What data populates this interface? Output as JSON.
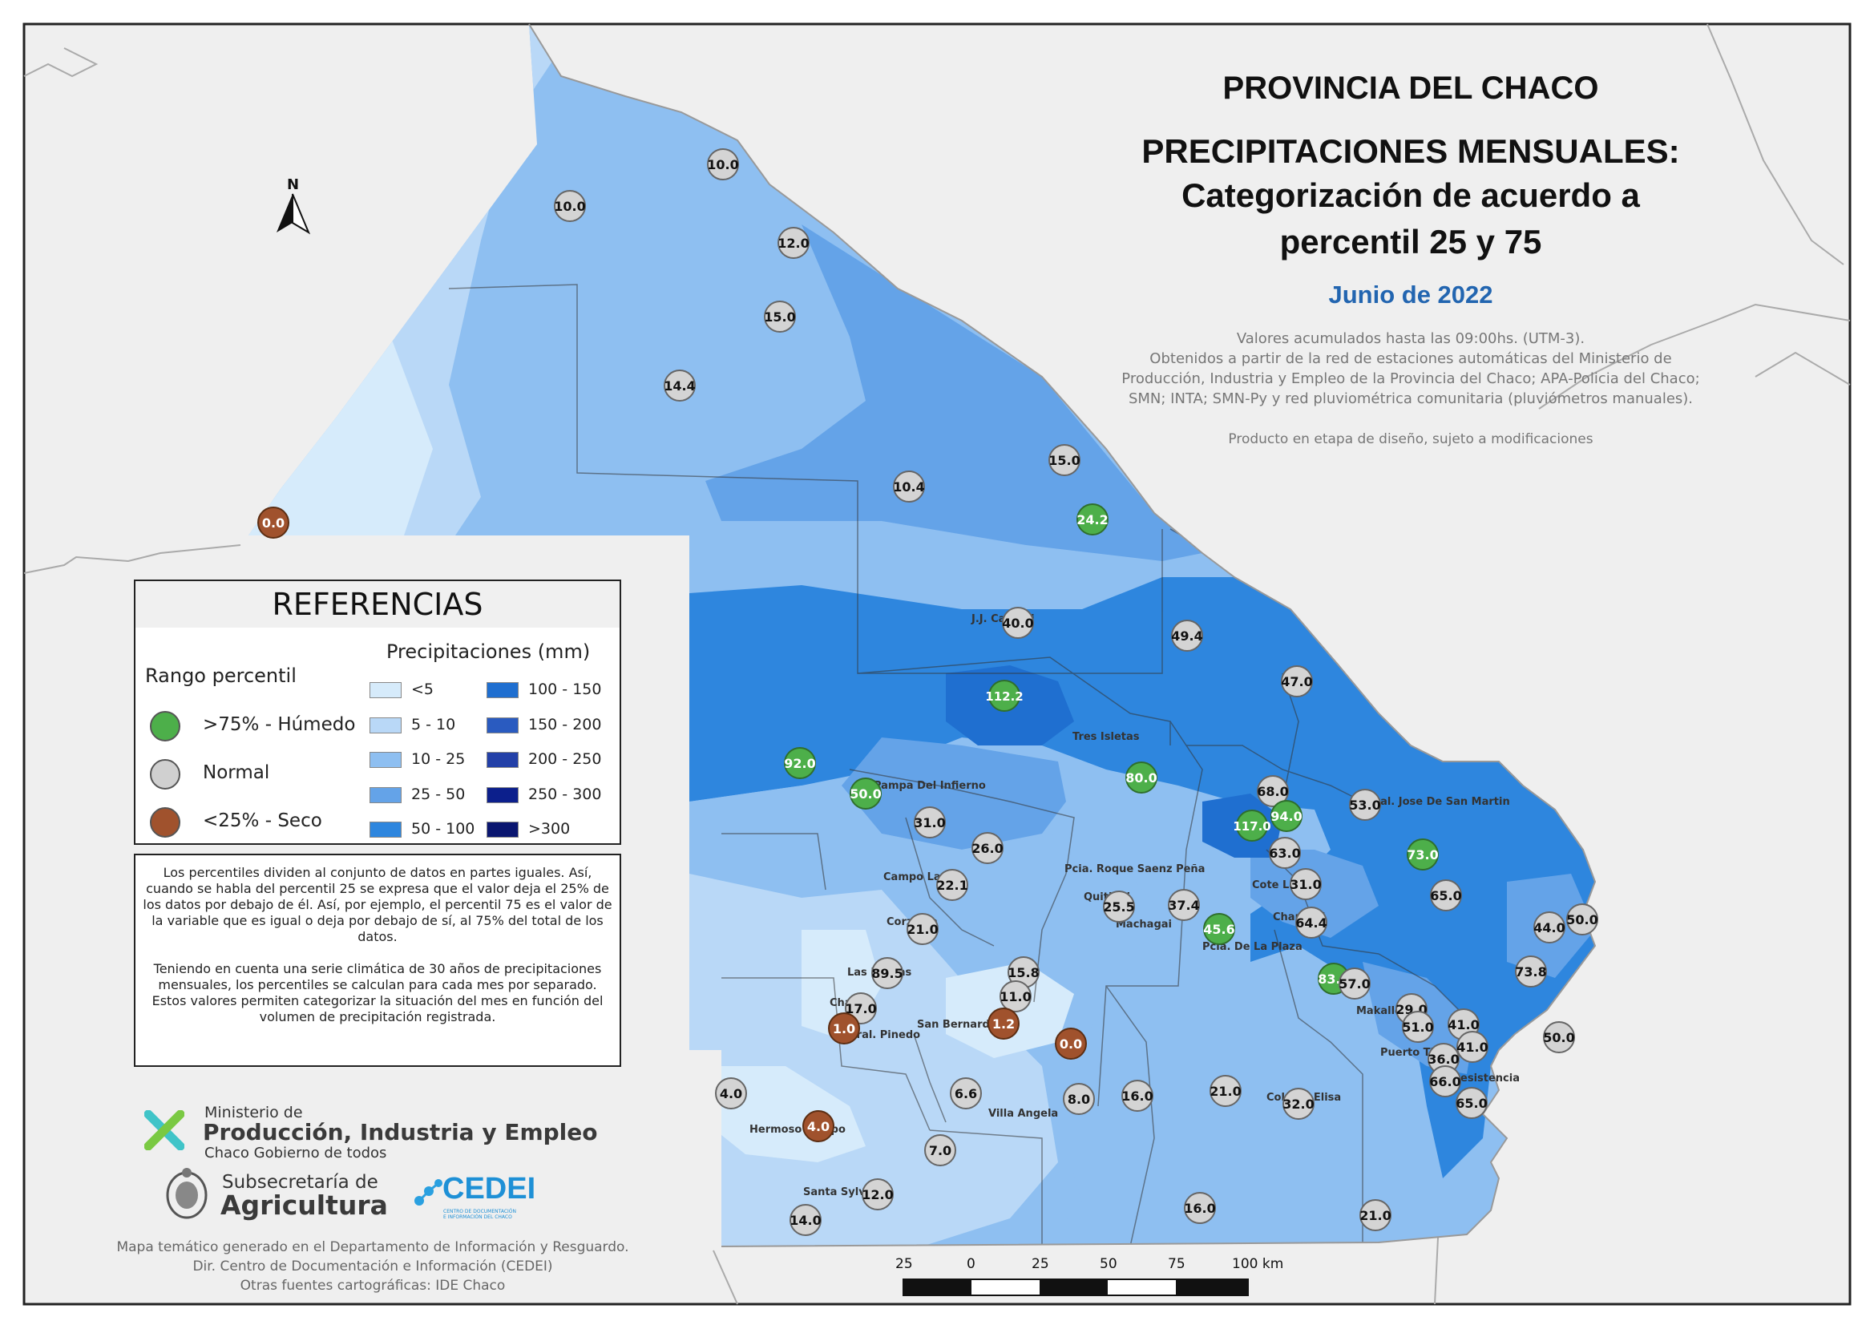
{
  "title": {
    "line1": "PROVINCIA DEL CHACO",
    "line2": "PRECIPITACIONES MENSUALES:",
    "line3": "Categorización de acuerdo a",
    "line4": "percentil 25 y 75",
    "period": "Junio de 2022"
  },
  "description": {
    "l1": "Valores acumulados hasta las 09:00hs. (UTM-3).",
    "l2": "Obtenidos a partir de la red de estaciones automáticas del Ministerio de",
    "l3": "Producción, Industria y Empleo de la Provincia del Chaco; APA-Policia del Chaco;",
    "l4": "SMN; INTA; SMN-Py y red pluviométrica comunitaria (pluviómetros manuales).",
    "l5": "Producto en etapa de diseño, sujeto a modificaciones"
  },
  "north_arrow": "N",
  "legend": {
    "title": "REFERENCIAS",
    "percentile_title": "Rango percentil",
    "percentile_items": [
      {
        "label": ">75% - Húmedo",
        "color": "#4daf4a"
      },
      {
        "label": "Normal",
        "color": "#d0d0d0"
      },
      {
        "label": "<25% - Seco",
        "color": "#a0522d"
      }
    ],
    "precip_title": "Precipitaciones (mm)",
    "precip_items": [
      {
        "label": "<5",
        "color": "#d6ebfb"
      },
      {
        "label": "5 - 10",
        "color": "#b9d8f7"
      },
      {
        "label": "10 - 25",
        "color": "#8ebff1"
      },
      {
        "label": "25 - 50",
        "color": "#64a3e8"
      },
      {
        "label": "50 - 100",
        "color": "#2e86de"
      },
      {
        "label": "100 - 150",
        "color": "#1f6fd0"
      },
      {
        "label": "150 - 200",
        "color": "#2a5bc0"
      },
      {
        "label": "200 - 250",
        "color": "#2340a8"
      },
      {
        "label": "250 - 300",
        "color": "#0c1f8c"
      },
      {
        "label": ">300",
        "color": "#0a1670"
      }
    ]
  },
  "note": {
    "p1": "Los percentiles dividen al conjunto de datos en partes iguales. Así, cuando se habla del percentil 25 se expresa que el valor deja el 25% de los datos por debajo de él. Así, por ejemplo, el percentil 75 es el valor de la variable que es igual o deja por debajo de sí, al 75% del total de los datos.",
    "p2": "Teniendo en cuenta una serie climática de 30 años de precipitaciones mensuales, los percentiles se calculan para cada mes por separado. Estos valores permiten categorizar la situación del mes en función del volumen de precipitación registrada."
  },
  "logos": {
    "ministerio_small": "Ministerio de",
    "ministerio_big": "Producción, Industria y Empleo",
    "ministerio_tag": "Chaco Gobierno de todos",
    "subsec_small": "Subsecretaría de",
    "subsec_big": "Agricultura",
    "cedei": "CEDEI",
    "cedei_sub1": "CENTRO DE DOCUMENTACIÓN",
    "cedei_sub2": "E INFORMACIÓN DEL CHACO"
  },
  "footer": {
    "l1": "Mapa temático generado en el Departamento de Información y Resguardo.",
    "l2": "Dir. Centro de Documentación e Información (CEDEI)",
    "l3": "Otras fuentes cartográficas: IDE Chaco"
  },
  "scale": {
    "labels": [
      "25",
      "0",
      "25",
      "50",
      "75",
      "100 km"
    ]
  },
  "place_labels": [
    {
      "name": "J.J. Castelli"
    },
    {
      "name": "Tres Isletas"
    },
    {
      "name": "Pampa Del Infierno"
    },
    {
      "name": "Gral. Jose De San Martin"
    },
    {
      "name": "Pcia. Roque Saenz Peña"
    },
    {
      "name": "Campo Largo"
    },
    {
      "name": "Quitilipi"
    },
    {
      "name": "Machagai"
    },
    {
      "name": "Corzuela"
    },
    {
      "name": "Pcia. De La Plaza"
    },
    {
      "name": "Charata"
    },
    {
      "name": "Las Breñas"
    },
    {
      "name": "San Bernardo"
    },
    {
      "name": "Gral. Pinedo"
    },
    {
      "name": "Villa Angela"
    },
    {
      "name": "Hermoso Campo"
    },
    {
      "name": "Santa Sylvina"
    },
    {
      "name": "Resistencia"
    },
    {
      "name": "Puerto Tirol"
    },
    {
      "name": "Colonia Elisa"
    },
    {
      "name": "Makallé"
    },
    {
      "name": "Charadai"
    },
    {
      "name": "Cote Lai"
    }
  ],
  "stations": [
    {
      "value": "10.0",
      "cat": "normal"
    },
    {
      "value": "10.0",
      "cat": "normal"
    },
    {
      "value": "12.0",
      "cat": "normal"
    },
    {
      "value": "15.0",
      "cat": "normal"
    },
    {
      "value": "14.4",
      "cat": "normal"
    },
    {
      "value": "15.0",
      "cat": "normal"
    },
    {
      "value": "10.4",
      "cat": "normal"
    },
    {
      "value": "24.2",
      "cat": "wet"
    },
    {
      "value": "0.0",
      "cat": "dry"
    },
    {
      "value": "40.0",
      "cat": "normal"
    },
    {
      "value": "49.4",
      "cat": "normal"
    },
    {
      "value": "47.0",
      "cat": "normal"
    },
    {
      "value": "112.2",
      "cat": "wet"
    },
    {
      "value": "92.0",
      "cat": "wet"
    },
    {
      "value": "50.0",
      "cat": "wet"
    },
    {
      "value": "80.0",
      "cat": "wet"
    },
    {
      "value": "68.0",
      "cat": "normal"
    },
    {
      "value": "94.0",
      "cat": "wet"
    },
    {
      "value": "117.0",
      "cat": "wet"
    },
    {
      "value": "53.0",
      "cat": "normal"
    },
    {
      "value": "31.0",
      "cat": "normal"
    },
    {
      "value": "26.0",
      "cat": "normal"
    },
    {
      "value": "63.0",
      "cat": "normal"
    },
    {
      "value": "73.0",
      "cat": "wet"
    },
    {
      "value": "22.1",
      "cat": "normal"
    },
    {
      "value": "31.0",
      "cat": "normal"
    },
    {
      "value": "65.0",
      "cat": "normal"
    },
    {
      "value": "25.5",
      "cat": "normal"
    },
    {
      "value": "37.4",
      "cat": "normal"
    },
    {
      "value": "21.0",
      "cat": "normal"
    },
    {
      "value": "45.6",
      "cat": "wet"
    },
    {
      "value": "64.4",
      "cat": "normal"
    },
    {
      "value": "44.0",
      "cat": "normal"
    },
    {
      "value": "50.0",
      "cat": "normal"
    },
    {
      "value": "89.5",
      "cat": "normal"
    },
    {
      "value": "15.8",
      "cat": "normal"
    },
    {
      "value": "73.8",
      "cat": "normal"
    },
    {
      "value": "83.0",
      "cat": "wet"
    },
    {
      "value": "57.0",
      "cat": "normal"
    },
    {
      "value": "17.0",
      "cat": "normal"
    },
    {
      "value": "11.0",
      "cat": "normal"
    },
    {
      "value": "29.0",
      "cat": "normal"
    },
    {
      "value": "1.0",
      "cat": "dry"
    },
    {
      "value": "1.2",
      "cat": "dry"
    },
    {
      "value": "0.0",
      "cat": "dry"
    },
    {
      "value": "51.0",
      "cat": "normal"
    },
    {
      "value": "41.0",
      "cat": "normal"
    },
    {
      "value": "50.0",
      "cat": "normal"
    },
    {
      "value": "41.0",
      "cat": "normal"
    },
    {
      "value": "36.0",
      "cat": "normal"
    },
    {
      "value": "4.0",
      "cat": "normal"
    },
    {
      "value": "6.6",
      "cat": "normal"
    },
    {
      "value": "8.0",
      "cat": "normal"
    },
    {
      "value": "16.0",
      "cat": "normal"
    },
    {
      "value": "21.0",
      "cat": "normal"
    },
    {
      "value": "32.0",
      "cat": "normal"
    },
    {
      "value": "66.0",
      "cat": "normal"
    },
    {
      "value": "65.0",
      "cat": "normal"
    },
    {
      "value": "4.0",
      "cat": "dry"
    },
    {
      "value": "7.0",
      "cat": "normal"
    },
    {
      "value": "12.0",
      "cat": "normal"
    },
    {
      "value": "14.0",
      "cat": "normal"
    },
    {
      "value": "16.0",
      "cat": "normal"
    },
    {
      "value": "21.0",
      "cat": "normal"
    }
  ]
}
